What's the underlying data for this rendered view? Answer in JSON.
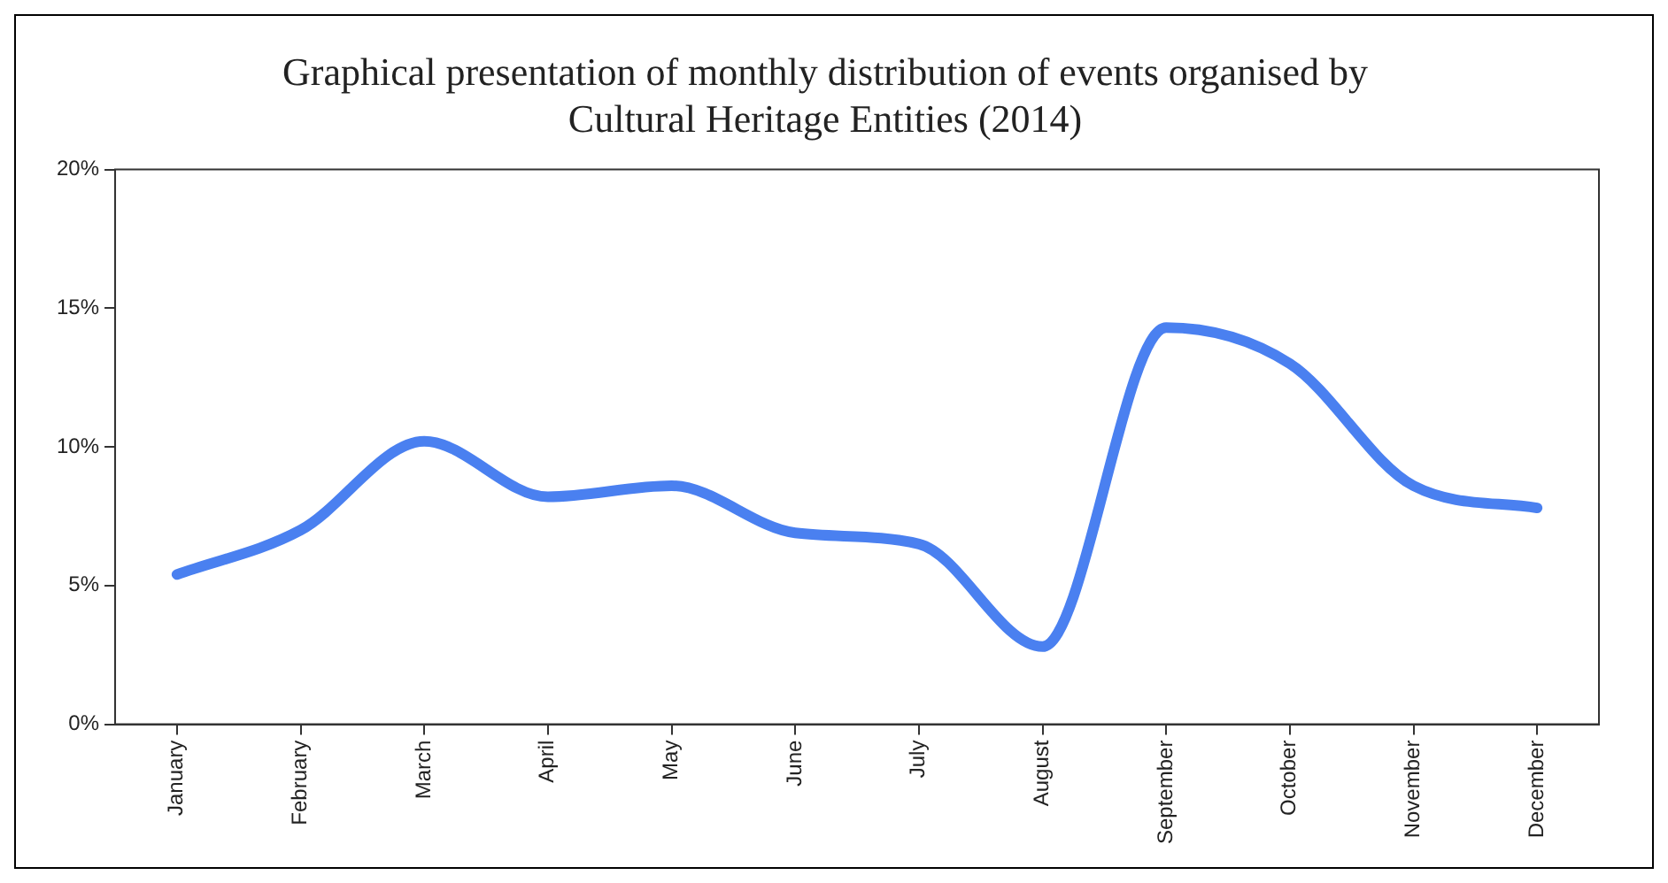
{
  "chart_data": {
    "type": "line",
    "title": [
      "Graphical presentation of monthly distribution of events organised by",
      "Cultural Heritage Entities (2014)"
    ],
    "categories": [
      "January",
      "February",
      "March",
      "April",
      "May",
      "June",
      "July",
      "August",
      "September",
      "October",
      "November",
      "December"
    ],
    "series": [
      {
        "color": "#4a80f0",
        "values": [
          5.4,
          7.0,
          10.2,
          8.2,
          8.6,
          6.9,
          6.5,
          2.8,
          14.3,
          13.0,
          8.6,
          7.8
        ]
      }
    ],
    "ylim": [
      0,
      20
    ],
    "yticks": [
      {
        "value": 0,
        "label": "0%"
      },
      {
        "value": 5,
        "label": "5%"
      },
      {
        "value": 10,
        "label": "10%"
      },
      {
        "value": 15,
        "label": "15%"
      },
      {
        "value": 20,
        "label": "20%"
      }
    ],
    "grid": false,
    "legend": false,
    "marker": "none",
    "line_style": "solid"
  }
}
